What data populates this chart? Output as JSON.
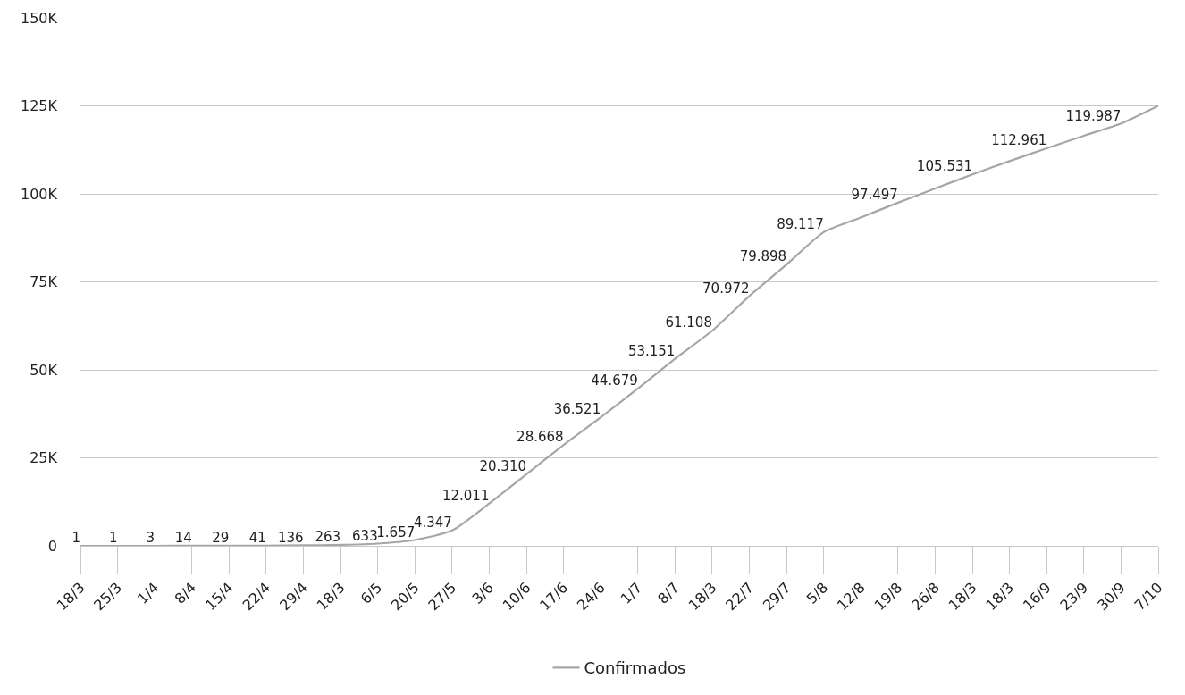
{
  "chart_data": {
    "type": "line",
    "categories": [
      "18/3",
      "25/3",
      "1/4",
      "8/4",
      "15/4",
      "22/4",
      "29/4",
      "18/3",
      "6/5",
      "20/5",
      "27/5",
      "3/6",
      "10/6",
      "17/6",
      "24/6",
      "1/7",
      "8/7",
      "18/3",
      "22/7",
      "29/7",
      "5/8",
      "12/8",
      "19/8",
      "26/8",
      "18/3",
      "18/3",
      "16/9",
      "23/9",
      "30/9",
      "7/10"
    ],
    "series": [
      {
        "name": "Confirmados",
        "color": "#a6a6a6",
        "values": [
          1,
          1,
          3,
          14,
          29,
          41,
          136,
          263,
          633,
          1657,
          4347,
          12011,
          20310,
          28668,
          36521,
          44679,
          53151,
          61108,
          70972,
          79898,
          89117,
          93300,
          97497,
          101500,
          105531,
          109300,
          112961,
          116500,
          119987,
          125000
        ],
        "value_labels": [
          "1",
          "1",
          "3",
          "14",
          "29",
          "41",
          "136",
          "263",
          "633",
          "1.657",
          "4.347",
          "12.011",
          "20.310",
          "28.668",
          "36.521",
          "44.679",
          "53.151",
          "61.108",
          "70.972",
          "79.898",
          "89.117",
          null,
          "97.497",
          null,
          "105.531",
          null,
          "112.961",
          null,
          "119.987",
          null
        ]
      }
    ],
    "ylim": [
      0,
      150000
    ],
    "yticks": [
      0,
      {
        "value": 25000,
        "label": "25K"
      },
      {
        "value": 50000,
        "label": "50K"
      },
      {
        "value": 75000,
        "label": "75K"
      },
      {
        "value": 100000,
        "label": "100K"
      },
      {
        "value": 125000,
        "label": "125K"
      },
      {
        "value": 150000,
        "label": "150K"
      }
    ],
    "grid": "y",
    "legend": "bottom",
    "marker": "none",
    "line_style": "solid"
  }
}
